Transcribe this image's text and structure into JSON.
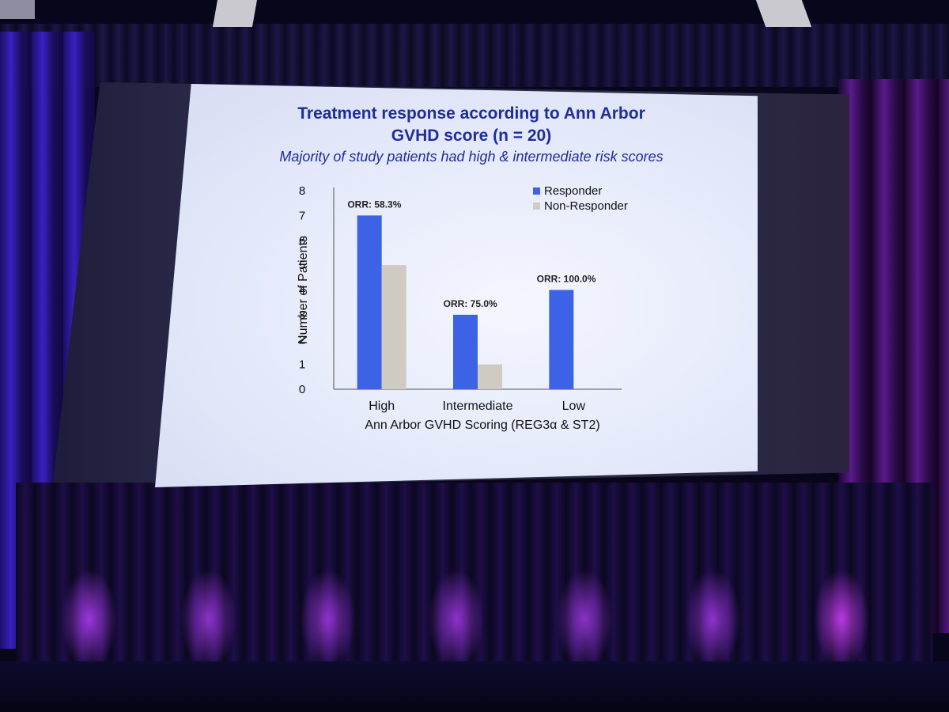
{
  "colors": {
    "responder": "#3c62e6",
    "non_responder": "#cfcac2",
    "title_blue": "#1e2d9b"
  },
  "slide": {
    "title_line1": "Treatment response according to Ann Arbor",
    "title_line2": "GVHD score (n = 20)",
    "subtitle": "Majority of study patients had high & intermediate risk scores"
  },
  "chart_data": {
    "type": "bar",
    "categories": [
      "High",
      "Intermediate",
      "Low"
    ],
    "series": [
      {
        "name": "Responder",
        "values": [
          7,
          3,
          4
        ]
      },
      {
        "name": "Non-Responder",
        "values": [
          5,
          1,
          0
        ]
      }
    ],
    "annotations": [
      "ORR: 58.3%",
      "ORR: 75.0%",
      "ORR: 100.0%"
    ],
    "xlabel": "Ann Arbor GVHD Scoring (REG3α & ST2)",
    "ylabel": "Number of Patients",
    "ylim": [
      0,
      8
    ],
    "yticks": [
      "0",
      "1",
      "2",
      "3",
      "4",
      "5",
      "6",
      "7",
      "8"
    ],
    "legend_position": "top-right",
    "grid": false
  }
}
